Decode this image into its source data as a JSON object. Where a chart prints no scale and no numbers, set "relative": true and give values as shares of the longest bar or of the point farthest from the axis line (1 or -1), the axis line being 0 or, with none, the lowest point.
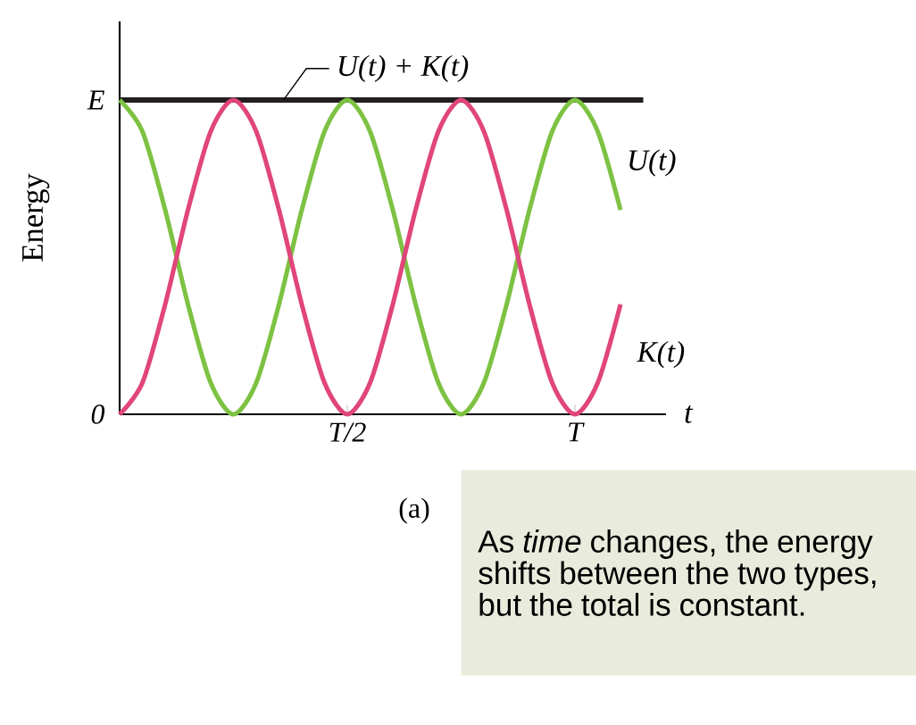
{
  "chart_data": {
    "type": "line",
    "xlabel": "t",
    "ylabel": "Energy",
    "relative": true,
    "categories": [
      null,
      null,
      null,
      null,
      null,
      null,
      null,
      null,
      null,
      null,
      "T/2",
      null,
      null,
      null,
      null,
      null,
      null,
      null,
      null,
      null,
      "T",
      null,
      null,
      null
    ],
    "series": [
      {
        "name": "U(t) + K(t)",
        "color": "#231f20",
        "values": [
          1,
          1,
          1,
          1,
          1,
          1,
          1,
          1,
          1,
          1,
          1,
          1,
          1,
          1,
          1,
          1,
          1,
          1,
          1,
          1,
          1,
          1,
          1,
          1
        ]
      },
      {
        "name": "U(t)",
        "color": "#7dc242",
        "values": [
          1,
          0.9,
          0.65,
          0.35,
          0.1,
          0,
          0.1,
          0.35,
          0.65,
          0.9,
          1,
          0.9,
          0.65,
          0.35,
          0.1,
          0,
          0.1,
          0.35,
          0.65,
          0.9,
          1,
          0.9,
          0.65,
          null
        ]
      },
      {
        "name": "K(t)",
        "color": "#e0457b",
        "values": [
          0,
          0.1,
          0.35,
          0.65,
          0.9,
          1,
          0.9,
          0.65,
          0.35,
          0.1,
          0,
          0.1,
          0.35,
          0.65,
          0.9,
          1,
          0.9,
          0.65,
          0.35,
          0.1,
          0,
          0.1,
          0.35,
          null
        ]
      }
    ],
    "annotations": [
      "E",
      "0",
      "(a)",
      "As *time* changes, the energy shifts between the two types, but the total is constant."
    ]
  }
}
